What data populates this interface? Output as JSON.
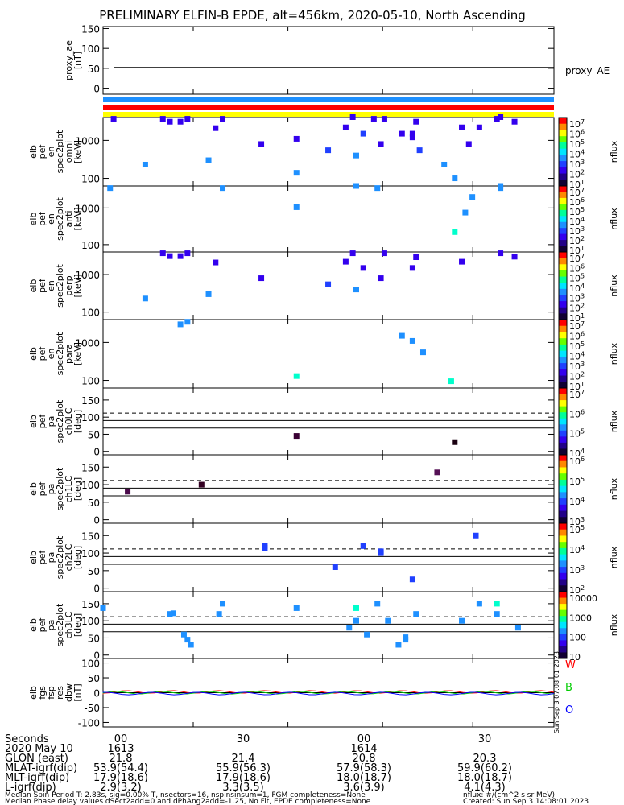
{
  "title": "PRELIMINARY ELFIN-B EPDE, alt=456km, 2020-05-10, North Ascending",
  "colors": {
    "bar_blue": "#1e90ff",
    "bar_red": "#ff0000",
    "bar_yellow": "#ffff00"
  },
  "chart_data": [
    {
      "type": "line",
      "ylabel_lines": [
        "proxy_ae",
        "[nT]"
      ],
      "legend": "proxy_AE",
      "yticks": [
        "150",
        "100",
        "50",
        "0"
      ],
      "ylim": [
        -15,
        155
      ],
      "value": 52
    },
    {
      "type": "scatter",
      "scale": "log",
      "ylabel_lines": [
        "elb",
        "pef",
        "en",
        "spec2plot",
        "omni",
        "[keV]"
      ],
      "yticks": [
        "1000",
        "100"
      ],
      "ylim": [
        63,
        4000
      ],
      "colorbar_label": "nflux",
      "colorbar_ticks": [
        "10^7",
        "10^6",
        "10^5",
        "10^4",
        "10^3",
        "10^2",
        "10^1"
      ],
      "points": [
        {
          "t": 0.03,
          "y": 3700,
          "c": "#3300ee"
        },
        {
          "t": 0.12,
          "y": 230,
          "c": "#1e90ff"
        },
        {
          "t": 0.17,
          "y": 3700,
          "c": "#3300ee"
        },
        {
          "t": 0.19,
          "y": 3100,
          "c": "#3300ee"
        },
        {
          "t": 0.22,
          "y": 3100,
          "c": "#3300ee"
        },
        {
          "t": 0.24,
          "y": 3700,
          "c": "#3300ee"
        },
        {
          "t": 0.3,
          "y": 300,
          "c": "#1e90ff"
        },
        {
          "t": 0.32,
          "y": 2100,
          "c": "#3300ee"
        },
        {
          "t": 0.34,
          "y": 3700,
          "c": "#3300ee"
        },
        {
          "t": 0.45,
          "y": 800,
          "c": "#3300ee"
        },
        {
          "t": 0.55,
          "y": 140,
          "c": "#1e90ff"
        },
        {
          "t": 0.55,
          "y": 1100,
          "c": "#3300ee"
        },
        {
          "t": 0.64,
          "y": 550,
          "c": "#2040ff"
        },
        {
          "t": 0.69,
          "y": 2200,
          "c": "#3300ee"
        },
        {
          "t": 0.71,
          "y": 4100,
          "c": "#3300ee"
        },
        {
          "t": 0.72,
          "y": 400,
          "c": "#1e90ff"
        },
        {
          "t": 0.74,
          "y": 1500,
          "c": "#2040ff"
        },
        {
          "t": 0.77,
          "y": 3700,
          "c": "#3300ee"
        },
        {
          "t": 0.79,
          "y": 800,
          "c": "#3300ee"
        },
        {
          "t": 0.8,
          "y": 3700,
          "c": "#3300ee"
        },
        {
          "t": 0.85,
          "y": 1500,
          "c": "#3300ee"
        },
        {
          "t": 0.88,
          "y": 1200,
          "c": "#3300ee"
        },
        {
          "t": 0.88,
          "y": 1500,
          "c": "#3300ee"
        },
        {
          "t": 0.89,
          "y": 3100,
          "c": "#3300ee"
        },
        {
          "t": 0.9,
          "y": 550,
          "c": "#2040ff"
        },
        {
          "t": 0.97,
          "y": 230,
          "c": "#1e90ff"
        },
        {
          "t": 1.0,
          "y": 100,
          "c": "#1e90ff"
        },
        {
          "t": 1.02,
          "y": 2200,
          "c": "#3300ee"
        },
        {
          "t": 1.04,
          "y": 800,
          "c": "#3300ee"
        },
        {
          "t": 1.07,
          "y": 2200,
          "c": "#3300ee"
        },
        {
          "t": 1.12,
          "y": 3700,
          "c": "#3300ee"
        },
        {
          "t": 1.13,
          "y": 4100,
          "c": "#3300ee"
        },
        {
          "t": 1.17,
          "y": 3100,
          "c": "#3300ee"
        }
      ]
    },
    {
      "type": "scatter",
      "scale": "log",
      "ylabel_lines": [
        "elb",
        "pef",
        "en",
        "spec2plot",
        "anti",
        "[keV]"
      ],
      "yticks": [
        "1000",
        "100"
      ],
      "ylim": [
        63,
        4000
      ],
      "colorbar_label": "nflux",
      "colorbar_ticks": [
        "10^7",
        "10^6",
        "10^5",
        "10^4",
        "10^3",
        "10^2",
        "10^1"
      ],
      "points": [
        {
          "t": 0.02,
          "y": 3500,
          "c": "#1e90ff"
        },
        {
          "t": 0.34,
          "y": 3500,
          "c": "#1e90ff"
        },
        {
          "t": 0.55,
          "y": 1050,
          "c": "#1e90ff"
        },
        {
          "t": 0.72,
          "y": 4000,
          "c": "#1e90ff"
        },
        {
          "t": 0.78,
          "y": 3500,
          "c": "#1e90ff"
        },
        {
          "t": 1.0,
          "y": 220,
          "c": "#00ffcc"
        },
        {
          "t": 1.03,
          "y": 750,
          "c": "#1e90ff"
        },
        {
          "t": 1.05,
          "y": 2000,
          "c": "#1e90ff"
        },
        {
          "t": 1.13,
          "y": 3500,
          "c": "#1e90ff"
        },
        {
          "t": 1.13,
          "y": 4000,
          "c": "#1e90ff"
        }
      ]
    },
    {
      "type": "scatter",
      "scale": "log",
      "ylabel_lines": [
        "elb",
        "pef",
        "en",
        "spec2plot",
        "perp",
        "[keV]"
      ],
      "yticks": [
        "1000",
        "100"
      ],
      "ylim": [
        63,
        4000
      ],
      "colorbar_label": "nflux",
      "colorbar_ticks": [
        "10^7",
        "10^6",
        "10^5",
        "10^4",
        "10^3",
        "10^2",
        "10^1"
      ],
      "points": [
        {
          "t": 0.12,
          "y": 230,
          "c": "#1e90ff"
        },
        {
          "t": 0.17,
          "y": 3700,
          "c": "#3300ee"
        },
        {
          "t": 0.19,
          "y": 3100,
          "c": "#3300ee"
        },
        {
          "t": 0.22,
          "y": 3100,
          "c": "#3300ee"
        },
        {
          "t": 0.24,
          "y": 3700,
          "c": "#3300ee"
        },
        {
          "t": 0.3,
          "y": 300,
          "c": "#1e90ff"
        },
        {
          "t": 0.32,
          "y": 2100,
          "c": "#3300ee"
        },
        {
          "t": 0.45,
          "y": 800,
          "c": "#3300ee"
        },
        {
          "t": 0.64,
          "y": 550,
          "c": "#2040ff"
        },
        {
          "t": 0.69,
          "y": 2200,
          "c": "#3300ee"
        },
        {
          "t": 0.71,
          "y": 3700,
          "c": "#3300ee"
        },
        {
          "t": 0.72,
          "y": 400,
          "c": "#1e90ff"
        },
        {
          "t": 0.74,
          "y": 1500,
          "c": "#3300ee"
        },
        {
          "t": 0.79,
          "y": 800,
          "c": "#3300ee"
        },
        {
          "t": 0.8,
          "y": 3700,
          "c": "#3300ee"
        },
        {
          "t": 0.88,
          "y": 1500,
          "c": "#3300ee"
        },
        {
          "t": 0.89,
          "y": 2900,
          "c": "#3300ee"
        },
        {
          "t": 1.02,
          "y": 2200,
          "c": "#3300ee"
        },
        {
          "t": 1.13,
          "y": 3700,
          "c": "#3300ee"
        },
        {
          "t": 1.17,
          "y": 3000,
          "c": "#3300ee"
        }
      ]
    },
    {
      "type": "scatter",
      "scale": "log",
      "ylabel_lines": [
        "elb",
        "pef",
        "en",
        "spec2plot",
        "para",
        "[keV]"
      ],
      "yticks": [
        "1000",
        "100"
      ],
      "ylim": [
        63,
        4000
      ],
      "colorbar_label": "nflux",
      "colorbar_ticks": [
        "10^7",
        "10^6",
        "10^5",
        "10^4",
        "10^3",
        "10^2",
        "10^1"
      ],
      "points": [
        {
          "t": 0.22,
          "y": 3000,
          "c": "#1e90ff"
        },
        {
          "t": 0.24,
          "y": 3500,
          "c": "#1e90ff"
        },
        {
          "t": 0.55,
          "y": 130,
          "c": "#00ffcc"
        },
        {
          "t": 0.85,
          "y": 1500,
          "c": "#1e90ff"
        },
        {
          "t": 0.88,
          "y": 1100,
          "c": "#1e90ff"
        },
        {
          "t": 0.91,
          "y": 550,
          "c": "#1e90ff"
        },
        {
          "t": 0.99,
          "y": 95,
          "c": "#00ffcc"
        }
      ]
    },
    {
      "type": "scatter",
      "ylabel_lines": [
        "elb",
        "pef",
        "pa",
        "spec2plot",
        "ch0LC",
        "[deg]"
      ],
      "yticks": [
        "150",
        "100",
        "50",
        "0"
      ],
      "ylim": [
        -10,
        185
      ],
      "dashed_at": 112,
      "solid_at": [
        90,
        68
      ],
      "colorbar_label": "nflux",
      "colorbar_ticks": [
        "10^7",
        "10^6",
        "10^5",
        "10^4"
      ],
      "points": [
        {
          "t": 0.55,
          "y": 45,
          "c": "#3a0033"
        },
        {
          "t": 1.0,
          "y": 27,
          "c": "#1a0011"
        }
      ]
    },
    {
      "type": "scatter",
      "ylabel_lines": [
        "elb",
        "pef",
        "pa",
        "spec2plot",
        "ch1LC",
        "[deg]"
      ],
      "yticks": [
        "150",
        "100",
        "50",
        "0"
      ],
      "ylim": [
        -10,
        185
      ],
      "dashed_at": 112,
      "solid_at": [
        90,
        68
      ],
      "colorbar_label": "nflux",
      "colorbar_ticks": [
        "10^6",
        "10^5",
        "10^4",
        "10^3"
      ],
      "points": [
        {
          "t": 0.07,
          "y": 80,
          "c": "#4a0a4a"
        },
        {
          "t": 0.28,
          "y": 100,
          "c": "#330022"
        },
        {
          "t": 0.95,
          "y": 135,
          "c": "#551155"
        }
      ]
    },
    {
      "type": "scatter",
      "ylabel_lines": [
        "elb",
        "pef",
        "pa",
        "spec2plot",
        "ch2LC",
        "[deg]"
      ],
      "yticks": [
        "150",
        "100",
        "50",
        "0"
      ],
      "ylim": [
        -10,
        185
      ],
      "dashed_at": 112,
      "solid_at": [
        90,
        68
      ],
      "colorbar_label": "nflux",
      "colorbar_ticks": [
        "10^5",
        "10^4",
        "10^3",
        "10^2"
      ],
      "points": [
        {
          "t": 0.46,
          "y": 120,
          "c": "#2040ff"
        },
        {
          "t": 0.46,
          "y": 115,
          "c": "#2040ff"
        },
        {
          "t": 0.66,
          "y": 60,
          "c": "#2040ff"
        },
        {
          "t": 0.74,
          "y": 120,
          "c": "#2040ff"
        },
        {
          "t": 0.79,
          "y": 105,
          "c": "#2040ff"
        },
        {
          "t": 0.79,
          "y": 100,
          "c": "#2040ff"
        },
        {
          "t": 0.88,
          "y": 25,
          "c": "#2040ff"
        },
        {
          "t": 1.06,
          "y": 150,
          "c": "#2040ff"
        }
      ]
    },
    {
      "type": "scatter",
      "ylabel_lines": [
        "elb",
        "pef",
        "pa",
        "spec2plot",
        "ch3LC",
        "[deg]"
      ],
      "yticks": [
        "150",
        "100",
        "50",
        "0"
      ],
      "ylim": [
        -10,
        185
      ],
      "dashed_at": 112,
      "solid_at": [
        90,
        68
      ],
      "colorbar_label": "nflux",
      "colorbar_ticks": [
        "10000",
        "1000",
        "100",
        "10"
      ],
      "points": [
        {
          "t": 0.0,
          "y": 137,
          "c": "#1e90ff"
        },
        {
          "t": 0.19,
          "y": 120,
          "c": "#1e90ff"
        },
        {
          "t": 0.2,
          "y": 122,
          "c": "#1e90ff"
        },
        {
          "t": 0.23,
          "y": 60,
          "c": "#1e90ff"
        },
        {
          "t": 0.24,
          "y": 45,
          "c": "#1e90ff"
        },
        {
          "t": 0.25,
          "y": 30,
          "c": "#1e90ff"
        },
        {
          "t": 0.33,
          "y": 120,
          "c": "#1e90ff"
        },
        {
          "t": 0.34,
          "y": 150,
          "c": "#1e90ff"
        },
        {
          "t": 0.55,
          "y": 137,
          "c": "#1e90ff"
        },
        {
          "t": 0.7,
          "y": 80,
          "c": "#1e90ff"
        },
        {
          "t": 0.72,
          "y": 100,
          "c": "#1e90ff"
        },
        {
          "t": 0.72,
          "y": 137,
          "c": "#00ffcc"
        },
        {
          "t": 0.75,
          "y": 60,
          "c": "#1e90ff"
        },
        {
          "t": 0.78,
          "y": 150,
          "c": "#1e90ff"
        },
        {
          "t": 0.81,
          "y": 100,
          "c": "#1e90ff"
        },
        {
          "t": 0.84,
          "y": 30,
          "c": "#1e90ff"
        },
        {
          "t": 0.86,
          "y": 45,
          "c": "#1e90ff"
        },
        {
          "t": 0.86,
          "y": 52,
          "c": "#1e90ff"
        },
        {
          "t": 0.89,
          "y": 120,
          "c": "#1e90ff"
        },
        {
          "t": 1.02,
          "y": 100,
          "c": "#1e90ff"
        },
        {
          "t": 1.07,
          "y": 150,
          "c": "#1e90ff"
        },
        {
          "t": 1.12,
          "y": 150,
          "c": "#00ffcc"
        },
        {
          "t": 1.12,
          "y": 120,
          "c": "#1e90ff"
        },
        {
          "t": 1.18,
          "y": 80,
          "c": "#1e90ff"
        }
      ]
    },
    {
      "type": "line",
      "ylabel_lines": [
        "elb",
        "fgs",
        "fsp",
        "res",
        "dbw",
        "[nT]"
      ],
      "yticks": [
        "100",
        "50",
        "0",
        "-50",
        "-100"
      ],
      "ylim": [
        -115,
        115
      ],
      "legend": [
        "W",
        "B",
        "O"
      ],
      "legend_colors": [
        "#ff0000",
        "#00cc00",
        "#0000ff"
      ],
      "value": 0
    }
  ],
  "side_stamp": "Sun Sep  3 07:08:01 2023",
  "footer": {
    "labels": [
      "Seconds",
      "2020 May 10",
      "GLON (east)",
      "MLAT-igrf(dip)",
      "MLT-igrf(dip)",
      "L-igrf(dip)"
    ],
    "columns": [
      {
        "x": 150,
        "vals": [
          "00",
          "1613",
          "21.8",
          "53.9(54.4)",
          "17.9(18.6)",
          "2.9(3.2)"
        ]
      },
      {
        "x": 302,
        "vals": [
          "30",
          "",
          "21.4",
          "55.9(56.3)",
          "17.9(18.6)",
          "3.3(3.5)"
        ]
      },
      {
        "x": 452,
        "vals": [
          "00",
          "1614",
          "20.8",
          "57.9(58.3)",
          "18.0(18.7)",
          "3.6(3.9)"
        ]
      },
      {
        "x": 602,
        "vals": [
          "30",
          "",
          "20.3",
          "59.9(60.2)",
          "18.0(18.7)",
          "4.1(4.3)"
        ]
      }
    ],
    "line1": "Median Spin Period T: 2.83s, sig=0.00% T, nsectors=16, nspinsinsum=1, FGM completeness=None",
    "line2": "Median Phase delay values dSect2add=0 and dPhAng2add=-1.25, No Fit, EPDE completeness=None",
    "units_note": "nflux: #/(cm^2 s sr MeV)",
    "created": "Created: Sun Sep  3 14:08:01 2023"
  }
}
